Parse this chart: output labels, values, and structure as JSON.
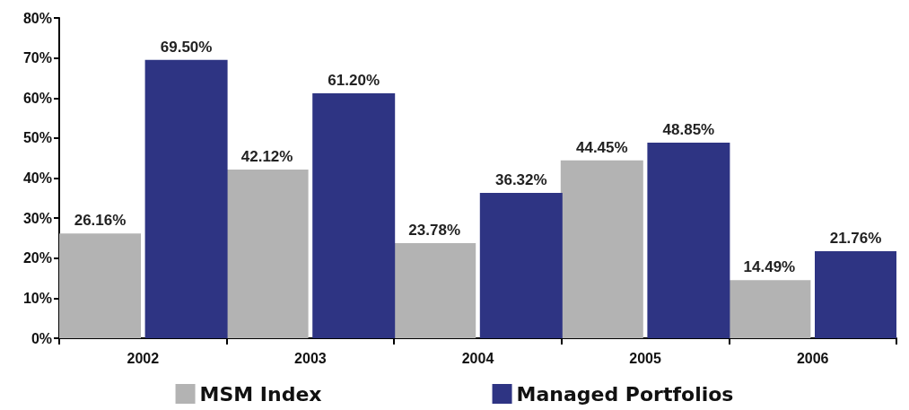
{
  "chart_data": {
    "type": "bar",
    "categories": [
      "2002",
      "2003",
      "2004",
      "2005",
      "2006"
    ],
    "series": [
      {
        "name": "MSM Index",
        "color": "#b3b3b3",
        "values": [
          26.16,
          42.12,
          23.78,
          44.45,
          14.49
        ],
        "value_labels": [
          "26.16%",
          "42.12%",
          "23.78%",
          "44.45%",
          "14.49%"
        ]
      },
      {
        "name": "Managed Portfolios",
        "color": "#2e3483",
        "values": [
          69.5,
          61.2,
          36.32,
          48.85,
          21.76
        ],
        "value_labels": [
          "69.50%",
          "61.20%",
          "36.32%",
          "48.85%",
          "21.76%"
        ]
      }
    ],
    "ylim": [
      0,
      80
    ],
    "yticks": [
      {
        "value": 0,
        "label": "0%"
      },
      {
        "value": 10,
        "label": "10%"
      },
      {
        "value": 20,
        "label": "20%"
      },
      {
        "value": 30,
        "label": "30%"
      },
      {
        "value": 40,
        "label": "40%"
      },
      {
        "value": 50,
        "label": "50%"
      },
      {
        "value": 60,
        "label": "60%"
      },
      {
        "value": 70,
        "label": "70%"
      },
      {
        "value": 80,
        "label": "80%"
      }
    ],
    "grid": false,
    "legend": "bottom"
  }
}
